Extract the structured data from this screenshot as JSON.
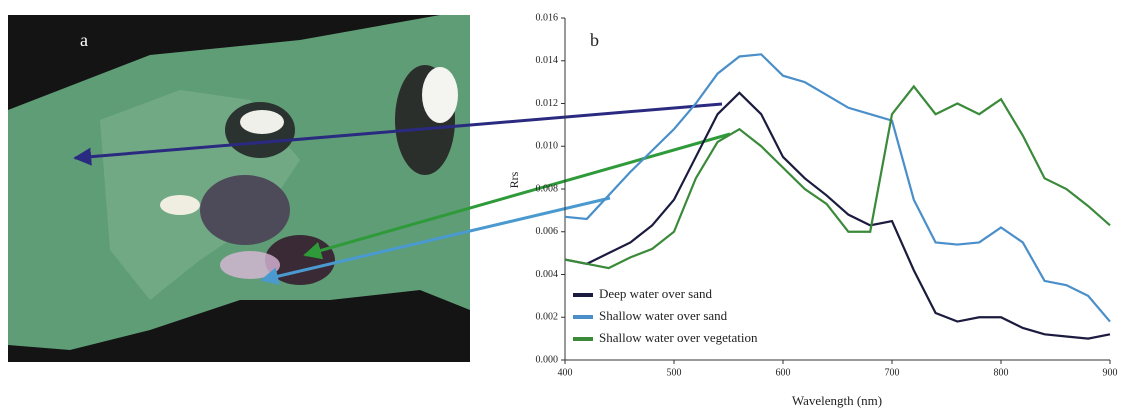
{
  "image_panel": {
    "label": "a"
  },
  "chart_data": {
    "type": "line",
    "panel_label": "b",
    "x_label": "Wavelength (nm)",
    "y_label": "Rrs",
    "x": [
      400,
      420,
      440,
      460,
      480,
      500,
      520,
      540,
      560,
      580,
      600,
      620,
      640,
      660,
      680,
      700,
      720,
      740,
      760,
      780,
      800,
      820,
      840,
      860,
      880,
      900
    ],
    "series": [
      {
        "name": "Deep water over sand",
        "color": "#1b1b3f",
        "values": [
          0.0047,
          0.0045,
          0.005,
          0.0055,
          0.0063,
          0.0075,
          0.0095,
          0.0115,
          0.0125,
          0.0115,
          0.0095,
          0.0085,
          0.0077,
          0.0068,
          0.0063,
          0.0065,
          0.0042,
          0.0022,
          0.0018,
          0.002,
          0.002,
          0.0015,
          0.0012,
          0.0011,
          0.001,
          0.0012
        ]
      },
      {
        "name": "Shallow water over sand",
        "color": "#4a8fc9",
        "values": [
          0.0067,
          0.0066,
          0.0077,
          0.0088,
          0.0098,
          0.0108,
          0.012,
          0.0134,
          0.0142,
          0.0143,
          0.0133,
          0.013,
          0.0124,
          0.0118,
          0.0115,
          0.0112,
          0.0075,
          0.0055,
          0.0054,
          0.0055,
          0.0062,
          0.0055,
          0.0037,
          0.0035,
          0.003,
          0.0018
        ]
      },
      {
        "name": "Shallow water over vegetation",
        "color": "#3a8a3a",
        "values": [
          0.0047,
          0.0045,
          0.0043,
          0.0048,
          0.0052,
          0.006,
          0.0085,
          0.0102,
          0.0108,
          0.01,
          0.009,
          0.008,
          0.0073,
          0.006,
          0.006,
          0.0115,
          0.0128,
          0.0115,
          0.012,
          0.0115,
          0.0122,
          0.0105,
          0.0085,
          0.008,
          0.0072,
          0.0063
        ]
      }
    ],
    "xlim": [
      400,
      900
    ],
    "xticks": [
      400,
      500,
      600,
      700,
      800,
      900
    ],
    "ylim": [
      0,
      0.016
    ],
    "yticks": [
      {
        "value": 0,
        "label": "0.000"
      },
      {
        "value": 0.002,
        "label": "0.002"
      },
      {
        "value": 0.004,
        "label": "0.004"
      },
      {
        "value": 0.006,
        "label": "0.006"
      },
      {
        "value": 0.008,
        "label": "0.008"
      },
      {
        "value": 0.01,
        "label": "0.010"
      },
      {
        "value": 0.012,
        "label": "0.012"
      },
      {
        "value": 0.014,
        "label": "0.014"
      },
      {
        "value": 0.016,
        "label": "0.016"
      }
    ],
    "legend": "lower left"
  }
}
